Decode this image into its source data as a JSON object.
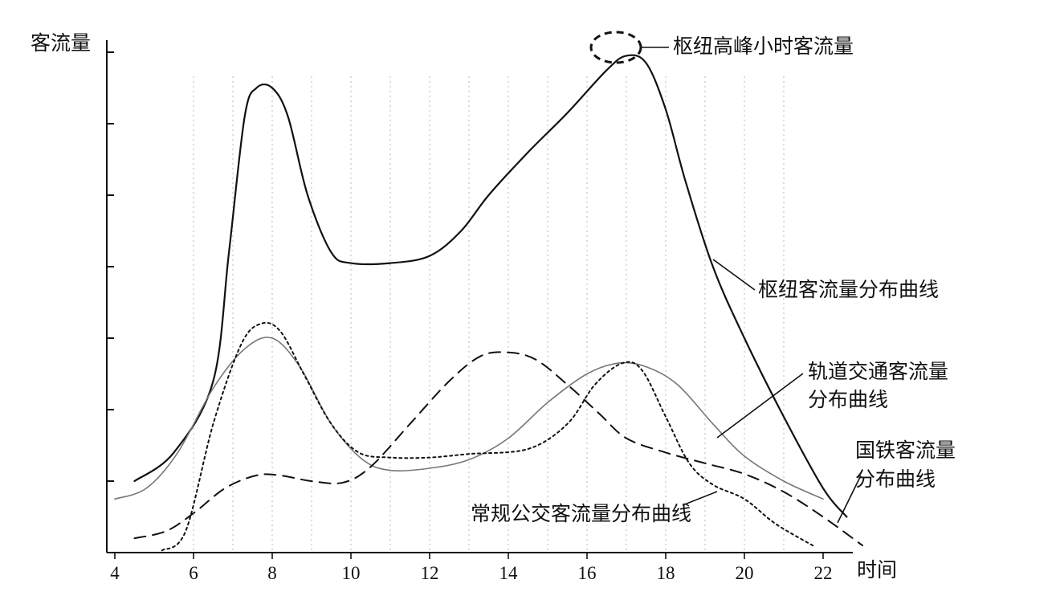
{
  "chart_data": {
    "type": "line",
    "title": "",
    "xlabel": "时间",
    "ylabel": "客流量",
    "xlim": [
      4,
      23
    ],
    "ylim": [
      0,
      7
    ],
    "x_ticks": [
      4,
      6,
      8,
      10,
      12,
      14,
      16,
      18,
      20,
      22
    ],
    "y_ticks": [
      1,
      2,
      3,
      4,
      5,
      6,
      7
    ],
    "grid": "vertical dotted at each hour from 6 to 21",
    "series": [
      {
        "name": "枢纽客流量分布曲线",
        "style": "solid",
        "color": "#111111",
        "points": [
          [
            4.5,
            1.0
          ],
          [
            5.5,
            1.4
          ],
          [
            6.5,
            2.4
          ],
          [
            6.9,
            4.2
          ],
          [
            7.3,
            6.1
          ],
          [
            7.6,
            6.5
          ],
          [
            8.0,
            6.5
          ],
          [
            8.4,
            6.1
          ],
          [
            8.9,
            5.0
          ],
          [
            9.5,
            4.2
          ],
          [
            10.0,
            4.05
          ],
          [
            11.0,
            4.05
          ],
          [
            12.0,
            4.15
          ],
          [
            12.8,
            4.5
          ],
          [
            13.5,
            5.0
          ],
          [
            14.5,
            5.6
          ],
          [
            15.5,
            6.15
          ],
          [
            16.5,
            6.75
          ],
          [
            17.0,
            6.95
          ],
          [
            17.5,
            6.85
          ],
          [
            18.0,
            6.2
          ],
          [
            18.5,
            5.2
          ],
          [
            19.2,
            4.0
          ],
          [
            20.0,
            3.0
          ],
          [
            21.0,
            1.9
          ],
          [
            22.0,
            0.9
          ],
          [
            22.6,
            0.5
          ]
        ]
      },
      {
        "name": "轨道交通客流量分布曲线",
        "style": "solid-gray",
        "color": "#777777",
        "points": [
          [
            4.0,
            0.75
          ],
          [
            4.8,
            0.9
          ],
          [
            5.6,
            1.4
          ],
          [
            6.5,
            2.3
          ],
          [
            7.3,
            2.85
          ],
          [
            8.0,
            3.0
          ],
          [
            8.7,
            2.6
          ],
          [
            9.5,
            1.8
          ],
          [
            10.3,
            1.3
          ],
          [
            11.0,
            1.15
          ],
          [
            12.0,
            1.18
          ],
          [
            13.0,
            1.3
          ],
          [
            14.0,
            1.6
          ],
          [
            15.0,
            2.1
          ],
          [
            16.0,
            2.5
          ],
          [
            16.8,
            2.65
          ],
          [
            17.5,
            2.6
          ],
          [
            18.3,
            2.35
          ],
          [
            19.2,
            1.8
          ],
          [
            20.0,
            1.35
          ],
          [
            21.0,
            1.0
          ],
          [
            22.0,
            0.75
          ]
        ]
      },
      {
        "name": "国铁客流量分布曲线",
        "style": "dotted",
        "color": "#111111",
        "points": [
          [
            5.2,
            0.03
          ],
          [
            5.8,
            0.3
          ],
          [
            6.5,
            1.8
          ],
          [
            7.2,
            2.9
          ],
          [
            7.7,
            3.2
          ],
          [
            8.2,
            3.1
          ],
          [
            8.8,
            2.5
          ],
          [
            9.5,
            1.8
          ],
          [
            10.2,
            1.4
          ],
          [
            11.0,
            1.33
          ],
          [
            12.0,
            1.33
          ],
          [
            13.0,
            1.38
          ],
          [
            14.5,
            1.45
          ],
          [
            15.5,
            1.8
          ],
          [
            16.2,
            2.35
          ],
          [
            16.9,
            2.65
          ],
          [
            17.4,
            2.55
          ],
          [
            18.0,
            1.9
          ],
          [
            18.6,
            1.25
          ],
          [
            19.2,
            0.95
          ],
          [
            20.0,
            0.75
          ],
          [
            20.8,
            0.4
          ],
          [
            21.8,
            0.08
          ]
        ]
      },
      {
        "name": "常规公交客流量分布曲线",
        "style": "dashed",
        "color": "#111111",
        "points": [
          [
            4.5,
            0.2
          ],
          [
            5.3,
            0.3
          ],
          [
            6.0,
            0.55
          ],
          [
            6.8,
            0.9
          ],
          [
            7.6,
            1.08
          ],
          [
            8.2,
            1.08
          ],
          [
            9.0,
            1.0
          ],
          [
            9.8,
            0.98
          ],
          [
            10.5,
            1.2
          ],
          [
            11.5,
            1.8
          ],
          [
            12.5,
            2.4
          ],
          [
            13.3,
            2.75
          ],
          [
            14.0,
            2.8
          ],
          [
            14.7,
            2.7
          ],
          [
            15.5,
            2.35
          ],
          [
            16.3,
            1.95
          ],
          [
            17.0,
            1.6
          ],
          [
            18.0,
            1.4
          ],
          [
            19.0,
            1.25
          ],
          [
            20.0,
            1.1
          ],
          [
            21.0,
            0.85
          ],
          [
            22.0,
            0.5
          ],
          [
            23.0,
            0.1
          ]
        ]
      }
    ],
    "annotations": {
      "peak": "枢纽高峰小时客流量",
      "hub": "枢纽客流量分布曲线",
      "rail_line1": "轨道交通客流量",
      "rail_line2": "分布曲线",
      "railway_line1": "国铁客流量",
      "railway_line2": "分布曲线",
      "bus": "常规公交客流量分布曲线"
    }
  }
}
